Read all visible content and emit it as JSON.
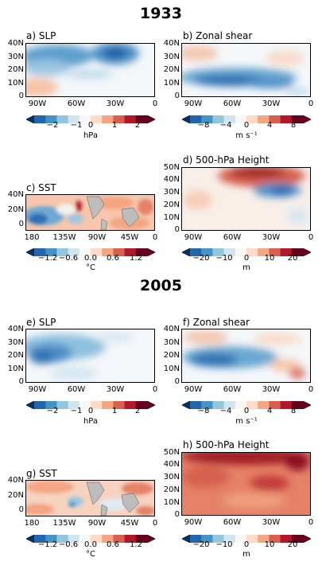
{
  "years": [
    "1933",
    "2005"
  ],
  "colorbars": {
    "slp": {
      "ticks": [
        "−2",
        "−1",
        "0",
        "1",
        "2"
      ],
      "unit": "hPa"
    },
    "shear": {
      "ticks": [
        "−8",
        "−4",
        "0",
        "4",
        "8"
      ],
      "unit": "m s⁻¹"
    },
    "sst": {
      "ticks": [
        "−1.2",
        "−0.6",
        "0.0",
        "0.6",
        "1.2"
      ],
      "unit": "°C"
    },
    "z500": {
      "ticks": [
        "−20",
        "−10",
        "0",
        "10",
        "20"
      ],
      "unit": "m"
    }
  },
  "axes": {
    "atl_x": [
      "90W",
      "60W",
      "30W",
      "0"
    ],
    "atl_y": [
      "0",
      "10N",
      "20N",
      "30N",
      "40N"
    ],
    "z_y": [
      "0",
      "10N",
      "20N",
      "30N",
      "40N",
      "50N"
    ],
    "sst_x": [
      "180",
      "135W",
      "90W",
      "45W",
      "0"
    ],
    "sst_y": [
      "0",
      "20N",
      "40N"
    ]
  },
  "panels": {
    "a": {
      "title": "a) SLP"
    },
    "b": {
      "title": "b) Zonal shear"
    },
    "c": {
      "title": "c) SST"
    },
    "d": {
      "title": "d) 500-hPa Height"
    },
    "e": {
      "title": "e) SLP"
    },
    "f": {
      "title": "f) Zonal shear"
    },
    "g": {
      "title": "g) SST"
    },
    "h": {
      "title": "h) 500-hPa Height"
    }
  },
  "chart_data": [
    {
      "type": "heatmap",
      "title": "a) SLP",
      "year": "1933",
      "variable": "SLP anomaly",
      "unit": "hPa",
      "clim": [
        -2.5,
        2.5
      ],
      "xlim": [
        "100W",
        "0"
      ],
      "ylim": [
        0,
        40
      ]
    },
    {
      "type": "heatmap",
      "title": "b) Zonal shear",
      "year": "1933",
      "variable": "Zonal shear anomaly",
      "unit": "m s⁻¹",
      "clim": [
        -10,
        10
      ],
      "xlim": [
        "100W",
        "0"
      ],
      "ylim": [
        0,
        40
      ]
    },
    {
      "type": "heatmap",
      "title": "c) SST",
      "year": "1933",
      "variable": "SST anomaly",
      "unit": "°C",
      "clim": [
        -1.5,
        1.5
      ],
      "xlim": [
        "180",
        "0"
      ],
      "ylim": [
        -10,
        40
      ]
    },
    {
      "type": "heatmap",
      "title": "d) 500-hPa Height",
      "year": "1933",
      "variable": "500-hPa height anomaly",
      "unit": "m",
      "clim": [
        -25,
        25
      ],
      "xlim": [
        "100W",
        "0"
      ],
      "ylim": [
        0,
        50
      ]
    },
    {
      "type": "heatmap",
      "title": "e) SLP",
      "year": "2005",
      "variable": "SLP anomaly",
      "unit": "hPa",
      "clim": [
        -2.5,
        2.5
      ],
      "xlim": [
        "100W",
        "0"
      ],
      "ylim": [
        0,
        40
      ]
    },
    {
      "type": "heatmap",
      "title": "f) Zonal shear",
      "year": "2005",
      "variable": "Zonal shear anomaly",
      "unit": "m s⁻¹",
      "clim": [
        -10,
        10
      ],
      "xlim": [
        "100W",
        "0"
      ],
      "ylim": [
        0,
        40
      ]
    },
    {
      "type": "heatmap",
      "title": "g) SST",
      "year": "2005",
      "variable": "SST anomaly",
      "unit": "°C",
      "clim": [
        -1.5,
        1.5
      ],
      "xlim": [
        "180",
        "0"
      ],
      "ylim": [
        -10,
        40
      ]
    },
    {
      "type": "heatmap",
      "title": "h) 500-hPa Height",
      "year": "2005",
      "variable": "500-hPa height anomaly",
      "unit": "m",
      "clim": [
        -25,
        25
      ],
      "xlim": [
        "100W",
        "0"
      ],
      "ylim": [
        0,
        50
      ]
    }
  ]
}
